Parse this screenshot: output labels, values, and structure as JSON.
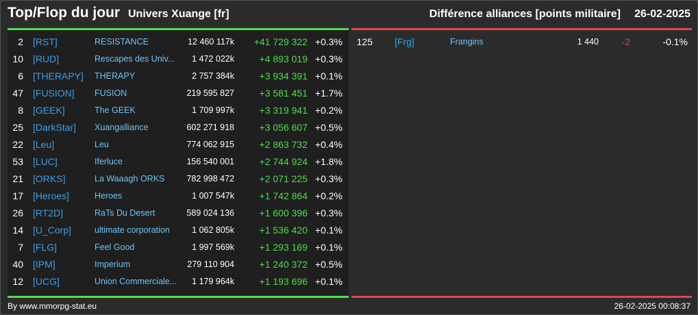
{
  "header": {
    "title": "Top/Flop du jour",
    "universe": "Univers Xuange [fr]",
    "right_title": "Différence alliances [points militaire]",
    "date": "26-02-2025"
  },
  "colors": {
    "top_accent": "#4cde4c",
    "flop_accent": "#e04848",
    "tag_color": "#3aa0e8",
    "name_color": "#6ec3f5"
  },
  "top": [
    {
      "rank": "2",
      "tag": "[RST]",
      "name": "RESISTANCE",
      "points": "12 460 117k",
      "diff": "+41 729 322",
      "pct": "+0.3%"
    },
    {
      "rank": "10",
      "tag": "[RUD]",
      "name": "Rescapes des Univ...",
      "points": "1 472 022k",
      "diff": "+4 893 019",
      "pct": "+0.3%"
    },
    {
      "rank": "6",
      "tag": "[THERAPY]",
      "name": "THERAPY",
      "points": "2 757 384k",
      "diff": "+3 934 391",
      "pct": "+0.1%"
    },
    {
      "rank": "47",
      "tag": "[FUSION]",
      "name": "FUSION",
      "points": "219 595 827",
      "diff": "+3 581 451",
      "pct": "+1.7%"
    },
    {
      "rank": "8",
      "tag": "[GEEK]",
      "name": "The GEEK",
      "points": "1 709 997k",
      "diff": "+3 319 941",
      "pct": "+0.2%"
    },
    {
      "rank": "25",
      "tag": "[DarkStar]",
      "name": "Xuangalliance",
      "points": "602 271 918",
      "diff": "+3 056 607",
      "pct": "+0.5%"
    },
    {
      "rank": "22",
      "tag": "[Leu]",
      "name": "Leu",
      "points": "774 062 915",
      "diff": "+2 863 732",
      "pct": "+0.4%"
    },
    {
      "rank": "53",
      "tag": "[LUC]",
      "name": "Iferluce",
      "points": "156 540 001",
      "diff": "+2 744 924",
      "pct": "+1.8%"
    },
    {
      "rank": "21",
      "tag": "[ORKS]",
      "name": "La Waaagh ORKS",
      "points": "782 998 472",
      "diff": "+2 071 225",
      "pct": "+0.3%"
    },
    {
      "rank": "17",
      "tag": "[Heroes]",
      "name": "Heroes",
      "points": "1 007 547k",
      "diff": "+1 742 864",
      "pct": "+0.2%"
    },
    {
      "rank": "26",
      "tag": "[RT2D]",
      "name": "RaTs Du Desert",
      "points": "589 024 136",
      "diff": "+1 600 396",
      "pct": "+0.3%"
    },
    {
      "rank": "14",
      "tag": "[U_Corp]",
      "name": "ultimate corporation",
      "points": "1 062 805k",
      "diff": "+1 536 420",
      "pct": "+0.1%"
    },
    {
      "rank": "7",
      "tag": "[FLG]",
      "name": "Feel Good",
      "points": "1 997 569k",
      "diff": "+1 293 169",
      "pct": "+0.1%"
    },
    {
      "rank": "40",
      "tag": "[IPM]",
      "name": "Imperium",
      "points": "279 110 904",
      "diff": "+1 240 372",
      "pct": "+0.5%"
    },
    {
      "rank": "12",
      "tag": "[UCG]",
      "name": "Union Commerciale...",
      "points": "1 179 964k",
      "diff": "+1 193 696",
      "pct": "+0.1%"
    }
  ],
  "flop": [
    {
      "rank": "125",
      "tag": "[Frg]",
      "name": "Frangins",
      "points": "1 440",
      "diff": "-2",
      "pct": "-0.1%"
    }
  ],
  "footer": {
    "source": "By www.mmorpg-stat.eu",
    "timestamp": "26-02-2025 00:08:37"
  }
}
